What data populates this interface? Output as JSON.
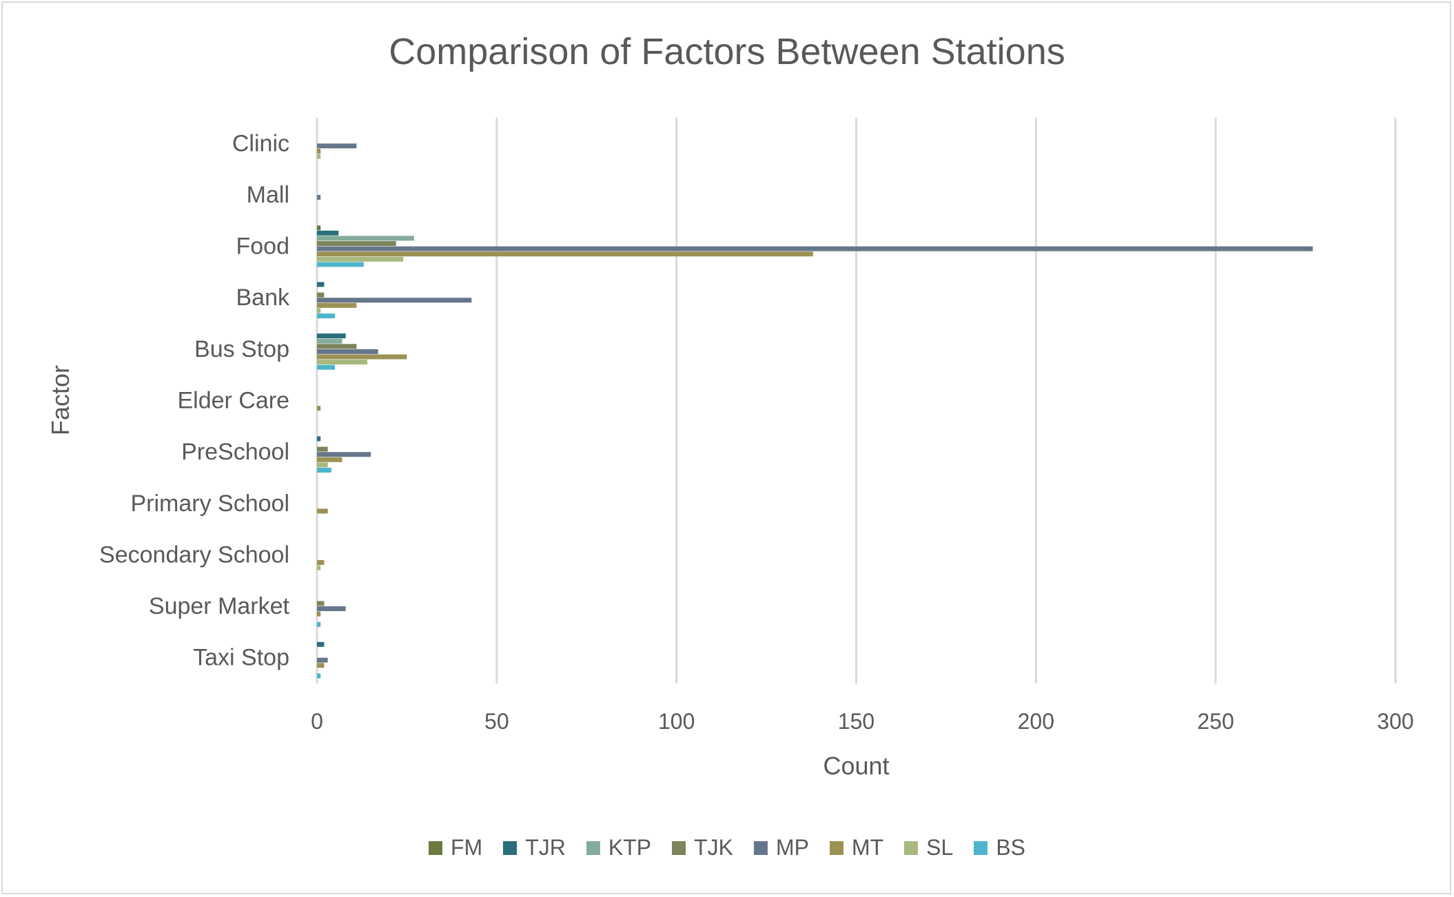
{
  "chart_data": {
    "type": "bar",
    "orientation": "horizontal",
    "title": "Comparison of Factors Between Stations",
    "xlabel": "Count",
    "ylabel": "Factor",
    "xlim": [
      0,
      300
    ],
    "xticks": [
      0,
      50,
      100,
      150,
      200,
      250,
      300
    ],
    "grid": true,
    "legend_position": "bottom",
    "categories": [
      "Clinic",
      "Mall",
      "Food",
      "Bank",
      "Bus Stop",
      "Elder Care",
      "PreSchool",
      "Primary School",
      "Secondary School",
      "Super Market",
      "Taxi Stop"
    ],
    "series": [
      {
        "name": "FM",
        "color": "#6b7a3f",
        "values": [
          0,
          0,
          1,
          0,
          0,
          0,
          0,
          0,
          0,
          0,
          0
        ]
      },
      {
        "name": "TJR",
        "color": "#2a6f7e",
        "values": [
          0,
          0,
          6,
          2,
          8,
          0,
          1,
          0,
          0,
          0,
          2
        ]
      },
      {
        "name": "KTP",
        "color": "#84ab9b",
        "values": [
          0,
          0,
          27,
          0,
          7,
          0,
          0,
          0,
          0,
          0,
          0
        ]
      },
      {
        "name": "TJK",
        "color": "#7b845a",
        "values": [
          0,
          0,
          22,
          2,
          11,
          0,
          3,
          0,
          0,
          2,
          0
        ]
      },
      {
        "name": "MP",
        "color": "#66768a",
        "values": [
          11,
          1,
          277,
          43,
          17,
          0,
          15,
          0,
          0,
          8,
          3
        ]
      },
      {
        "name": "MT",
        "color": "#9c9153",
        "values": [
          1,
          0,
          138,
          11,
          25,
          1,
          7,
          3,
          2,
          1,
          2
        ]
      },
      {
        "name": "SL",
        "color": "#a9b87f",
        "values": [
          1,
          0,
          24,
          1,
          14,
          0,
          3,
          0,
          1,
          0,
          0
        ]
      },
      {
        "name": "BS",
        "color": "#4db5cb",
        "values": [
          0,
          0,
          13,
          5,
          5,
          0,
          4,
          0,
          0,
          1,
          1
        ]
      }
    ]
  }
}
